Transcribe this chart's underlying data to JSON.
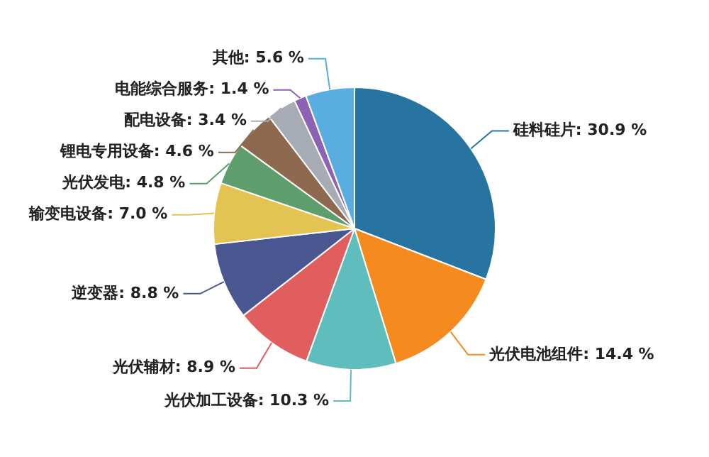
{
  "chart_data": {
    "type": "pie",
    "categories": [
      "硅料硅片",
      "光伏电池组件",
      "光伏加工设备",
      "光伏辅材",
      "逆变器",
      "输变电设备",
      "光伏发电",
      "锂电专用设备",
      "配电设备",
      "电能综合服务",
      "其他"
    ],
    "values": [
      30.9,
      14.4,
      10.3,
      8.9,
      8.8,
      7.0,
      4.8,
      4.6,
      3.4,
      1.4,
      5.6
    ],
    "value_labels": [
      "30.9 %",
      "14.4 %",
      "10.3 %",
      "8.9 %",
      "8.8 %",
      "7.0 %",
      "4.8 %",
      "4.6 %",
      "3.4 %",
      "1.4 %",
      "5.6 %"
    ],
    "colors": [
      "#26749f",
      "#f58a1f",
      "#5fbdbd",
      "#e05e5e",
      "#4a5690",
      "#e3c452",
      "#5e9e6c",
      "#8d6a4f",
      "#a7acb4",
      "#8c63b4",
      "#5aade0"
    ],
    "legend": false
  }
}
